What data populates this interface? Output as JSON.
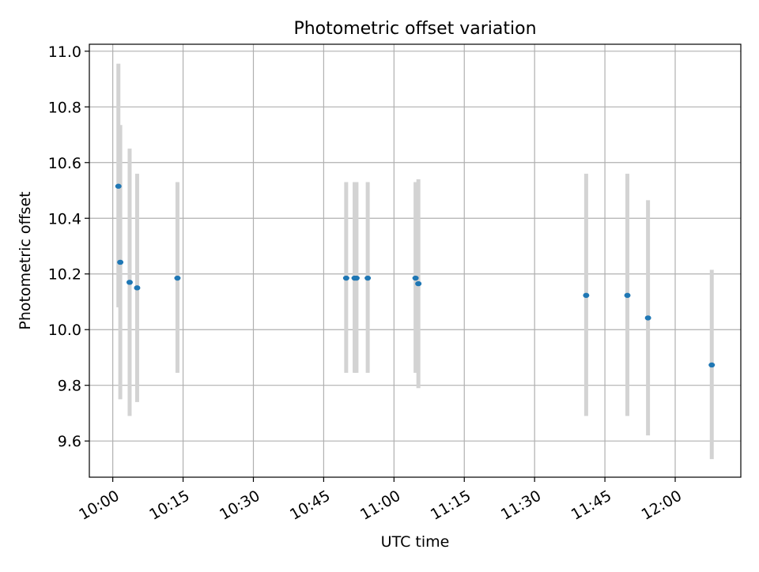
{
  "chart_data": {
    "type": "scatter",
    "title": "Photometric offset variation",
    "xlabel": "UTC time",
    "ylabel": "Photometric offset",
    "x_tick_labels": [
      "10:00",
      "10:15",
      "10:30",
      "10:45",
      "11:00",
      "11:15",
      "11:30",
      "11:45",
      "12:00"
    ],
    "y_tick_labels": [
      "9.6",
      "9.8",
      "10.0",
      "10.2",
      "10.4",
      "10.6",
      "10.8",
      "11.0"
    ],
    "xlim": [
      "09:55",
      "12:14"
    ],
    "ylim": [
      9.47,
      11.025
    ],
    "grid": true,
    "colors": {
      "marker": "#1f77b4",
      "errorbar": "#d3d3d3",
      "grid": "#b0b0b0"
    },
    "points": [
      {
        "t": "10:01:12",
        "y": 10.515,
        "err_low": 10.08,
        "err_high": 10.955
      },
      {
        "t": "10:01:36",
        "y": 10.242,
        "err_low": 9.75,
        "err_high": 10.735
      },
      {
        "t": "10:03:36",
        "y": 10.17,
        "err_low": 9.69,
        "err_high": 10.65
      },
      {
        "t": "10:05:12",
        "y": 10.15,
        "err_low": 9.74,
        "err_high": 10.56
      },
      {
        "t": "10:13:48",
        "y": 10.185,
        "err_low": 9.845,
        "err_high": 10.53
      },
      {
        "t": "10:49:48",
        "y": 10.185,
        "err_low": 9.845,
        "err_high": 10.53
      },
      {
        "t": "10:51:36",
        "y": 10.185,
        "err_low": 9.845,
        "err_high": 10.53
      },
      {
        "t": "10:52:00",
        "y": 10.185,
        "err_low": 9.845,
        "err_high": 10.53
      },
      {
        "t": "10:54:24",
        "y": 10.185,
        "err_low": 9.845,
        "err_high": 10.53
      },
      {
        "t": "11:04:36",
        "y": 10.185,
        "err_low": 9.845,
        "err_high": 10.53
      },
      {
        "t": "11:05:12",
        "y": 10.165,
        "err_low": 9.79,
        "err_high": 10.54
      },
      {
        "t": "11:41:00",
        "y": 10.123,
        "err_low": 9.69,
        "err_high": 10.56
      },
      {
        "t": "11:49:48",
        "y": 10.123,
        "err_low": 9.69,
        "err_high": 10.56
      },
      {
        "t": "11:54:12",
        "y": 10.042,
        "err_low": 9.62,
        "err_high": 10.465
      },
      {
        "t": "12:07:48",
        "y": 9.873,
        "err_low": 9.535,
        "err_high": 10.215
      }
    ]
  }
}
